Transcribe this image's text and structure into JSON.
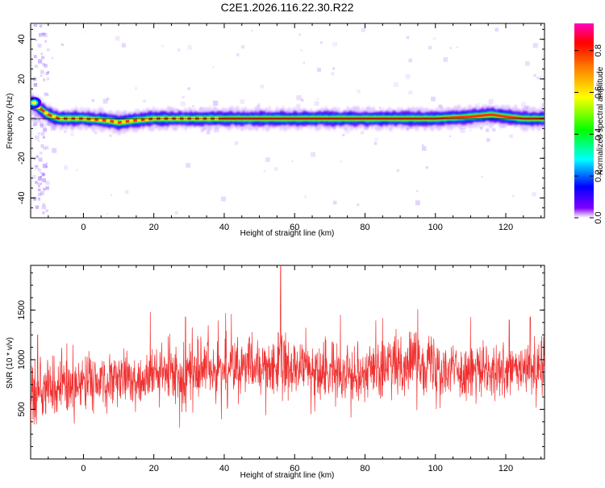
{
  "figure_title": "C2E1.2026.116.22.30.R22",
  "chart_data": [
    {
      "type": "heatmap",
      "title": "C2E1.2026.116.22.30.R22",
      "xlabel": "Height of straight line (km)",
      "ylabel": "Frequency (Hz)",
      "xlim": [
        -15,
        131
      ],
      "ylim": [
        -50,
        48
      ],
      "xticks": [
        0,
        20,
        40,
        60,
        80,
        100,
        120
      ],
      "yticks": [
        -40,
        -20,
        0,
        20,
        40
      ],
      "colorbar": {
        "label": "Normalized spectral amplitude",
        "range": [
          0.0,
          0.93
        ],
        "ticks": [
          0.0,
          0.2,
          0.4,
          0.6,
          0.8
        ]
      },
      "ridge": {
        "description": "High-amplitude band near 0 Hz across all heights",
        "points": [
          [
            -15,
            8
          ],
          [
            -13,
            6
          ],
          [
            -10,
            2
          ],
          [
            -7,
            0
          ],
          [
            0,
            0
          ],
          [
            7,
            -1
          ],
          [
            10,
            -2
          ],
          [
            14,
            -1
          ],
          [
            20,
            0
          ],
          [
            40,
            0
          ],
          [
            60,
            0
          ],
          [
            80,
            0
          ],
          [
            100,
            0
          ],
          [
            110,
            1
          ],
          [
            116,
            2
          ],
          [
            120,
            1
          ],
          [
            125,
            0
          ],
          [
            131,
            0
          ]
        ]
      }
    },
    {
      "type": "line",
      "xlabel": "Height of straight line (km)",
      "ylabel": "SNR (10 * v/v)",
      "xlim": [
        -15,
        131
      ],
      "ylim": [
        0,
        1950
      ],
      "xticks": [
        0,
        20,
        40,
        60,
        80,
        100,
        120
      ],
      "yticks": [
        500,
        1000,
        1500
      ],
      "color": "#f03030",
      "series": [
        {
          "name": "SNR",
          "x": [
            -15,
            -10,
            -5,
            0,
            5,
            10,
            15,
            20,
            25,
            30,
            35,
            40,
            45,
            50,
            55,
            60,
            65,
            70,
            75,
            80,
            85,
            90,
            95,
            100,
            105,
            110,
            115,
            120,
            125,
            131
          ],
          "mean": [
            650,
            700,
            720,
            760,
            780,
            780,
            800,
            830,
            860,
            880,
            900,
            910,
            920,
            920,
            920,
            910,
            890,
            880,
            880,
            890,
            910,
            950,
            980,
            960,
            900,
            880,
            870,
            870,
            900,
            920
          ],
          "spread": [
            400,
            380,
            340,
            330,
            320,
            330,
            330,
            340,
            350,
            360,
            360,
            360,
            370,
            370,
            380,
            360,
            340,
            330,
            330,
            340,
            350,
            360,
            380,
            360,
            340,
            330,
            330,
            330,
            340,
            350
          ],
          "peaks": [
            [
              -13,
              1250
            ],
            [
              -3,
              1150
            ],
            [
              19,
              1480
            ],
            [
              29,
              1430
            ],
            [
              42,
              1460
            ],
            [
              56,
              1950
            ],
            [
              73,
              1450
            ],
            [
              85,
              1420
            ],
            [
              95,
              1510
            ],
            [
              110,
              1430
            ],
            [
              121,
              1400
            ],
            [
              127,
              1430
            ]
          ]
        }
      ]
    }
  ]
}
